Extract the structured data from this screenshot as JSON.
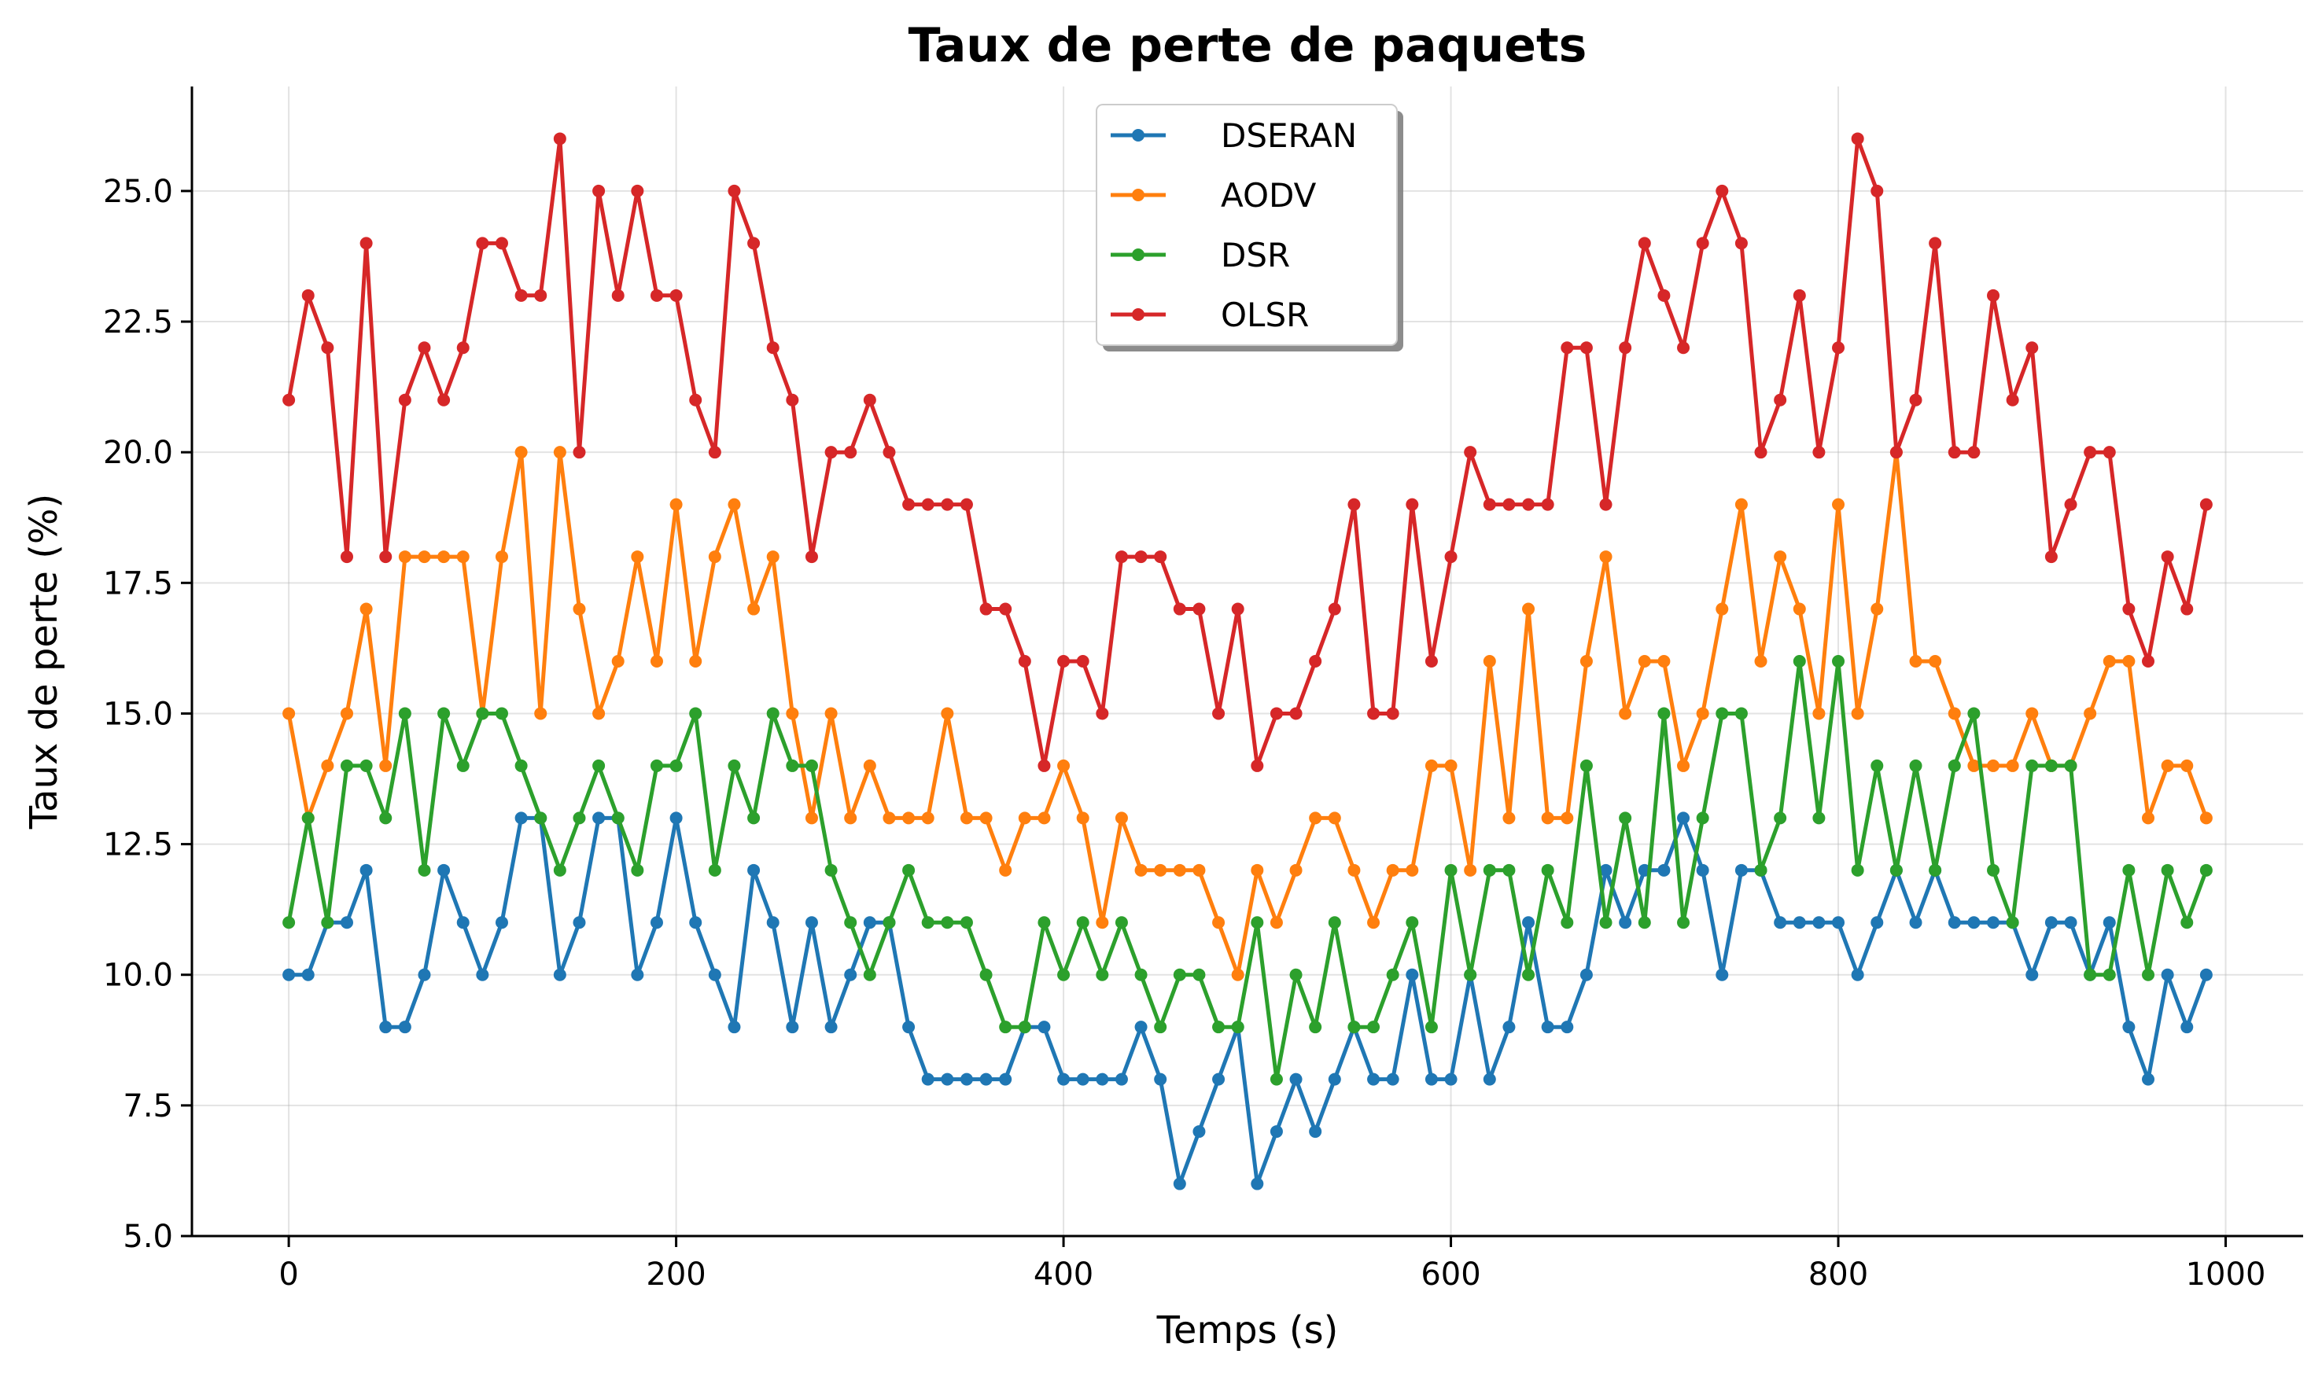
{
  "chart_data": {
    "type": "line",
    "title": "Taux de perte de paquets",
    "xlabel": "Temps (s)",
    "ylabel": "Taux de perte (%)",
    "xlim": [
      -50,
      1040
    ],
    "ylim": [
      5.0,
      27.0
    ],
    "xticks": [
      0,
      200,
      400,
      600,
      800,
      1000
    ],
    "xtick_labels": [
      "0",
      "200",
      "400",
      "600",
      "800",
      "1000"
    ],
    "yticks": [
      5.0,
      7.5,
      10.0,
      12.5,
      15.0,
      17.5,
      20.0,
      22.5,
      25.0
    ],
    "ytick_labels": [
      "5.0",
      "7.5",
      "10.0",
      "12.5",
      "15.0",
      "17.5",
      "20.0",
      "22.5",
      "25.0"
    ],
    "grid": true,
    "legend_position": "top-center",
    "x": [
      0,
      10,
      20,
      30,
      40,
      50,
      60,
      70,
      80,
      90,
      100,
      110,
      120,
      130,
      140,
      150,
      160,
      170,
      180,
      190,
      200,
      210,
      220,
      230,
      240,
      250,
      260,
      270,
      280,
      290,
      300,
      310,
      320,
      330,
      340,
      350,
      360,
      370,
      380,
      390,
      400,
      410,
      420,
      430,
      440,
      450,
      460,
      470,
      480,
      490,
      500,
      510,
      520,
      530,
      540,
      550,
      560,
      570,
      580,
      590,
      600,
      610,
      620,
      630,
      640,
      650,
      660,
      670,
      680,
      690,
      700,
      710,
      720,
      730,
      740,
      750,
      760,
      770,
      780,
      790,
      800,
      810,
      820,
      830,
      840,
      850,
      860,
      870,
      880,
      890,
      900,
      910,
      920,
      930,
      940,
      950,
      960,
      970,
      980,
      990
    ],
    "series": [
      {
        "name": "DSERAN",
        "color": "#1f77b4",
        "values": [
          10,
          10,
          11,
          11,
          12,
          9,
          9,
          10,
          12,
          11,
          10,
          11,
          13,
          13,
          10,
          11,
          13,
          13,
          10,
          11,
          13,
          11,
          10,
          9,
          12,
          11,
          9,
          11,
          9,
          10,
          11,
          11,
          9,
          8,
          8,
          8,
          8,
          8,
          9,
          9,
          8,
          8,
          8,
          8,
          9,
          8,
          6,
          7,
          8,
          9,
          6,
          7,
          8,
          7,
          8,
          9,
          8,
          8,
          10,
          8,
          8,
          10,
          8,
          9,
          11,
          9,
          9,
          10,
          12,
          11,
          12,
          12,
          13,
          12,
          10,
          12,
          12,
          11,
          11,
          11,
          11,
          10,
          11,
          12,
          11,
          12,
          11,
          11,
          11,
          11,
          10,
          11,
          11,
          10,
          11,
          9,
          8,
          10,
          9,
          10
        ]
      },
      {
        "name": "AODV",
        "color": "#ff7f0e",
        "values": [
          15,
          13,
          14,
          15,
          17,
          14,
          18,
          18,
          18,
          18,
          15,
          18,
          20,
          15,
          20,
          17,
          15,
          16,
          18,
          16,
          19,
          16,
          18,
          19,
          17,
          18,
          15,
          13,
          15,
          13,
          14,
          13,
          13,
          13,
          15,
          13,
          13,
          12,
          13,
          13,
          14,
          13,
          11,
          13,
          12,
          12,
          12,
          12,
          11,
          10,
          12,
          11,
          12,
          13,
          13,
          12,
          11,
          12,
          12,
          14,
          14,
          12,
          16,
          13,
          17,
          13,
          13,
          16,
          18,
          15,
          16,
          16,
          14,
          15,
          17,
          19,
          16,
          18,
          17,
          15,
          19,
          15,
          17,
          20,
          16,
          16,
          15,
          14,
          14,
          14,
          15,
          14,
          14,
          15,
          16,
          16,
          13,
          14,
          14,
          13
        ]
      },
      {
        "name": "DSR",
        "color": "#2ca02c",
        "values": [
          11,
          13,
          11,
          14,
          14,
          13,
          15,
          12,
          15,
          14,
          15,
          15,
          14,
          13,
          12,
          13,
          14,
          13,
          12,
          14,
          14,
          15,
          12,
          14,
          13,
          15,
          14,
          14,
          12,
          11,
          10,
          11,
          12,
          11,
          11,
          11,
          10,
          9,
          9,
          11,
          10,
          11,
          10,
          11,
          10,
          9,
          10,
          10,
          9,
          9,
          11,
          8,
          10,
          9,
          11,
          9,
          9,
          10,
          11,
          9,
          12,
          10,
          12,
          12,
          10,
          12,
          11,
          14,
          11,
          13,
          11,
          15,
          11,
          13,
          15,
          15,
          12,
          13,
          16,
          13,
          16,
          12,
          14,
          12,
          14,
          12,
          14,
          15,
          12,
          11,
          14,
          14,
          14,
          10,
          10,
          12,
          10,
          12,
          11,
          12
        ]
      },
      {
        "name": "OLSR",
        "color": "#d62728",
        "values": [
          21,
          23,
          22,
          18,
          24,
          18,
          21,
          22,
          21,
          22,
          24,
          24,
          23,
          23,
          26,
          20,
          25,
          23,
          25,
          23,
          23,
          21,
          20,
          25,
          24,
          22,
          21,
          18,
          20,
          20,
          21,
          20,
          19,
          19,
          19,
          19,
          17,
          17,
          16,
          14,
          16,
          16,
          15,
          18,
          18,
          18,
          17,
          17,
          15,
          17,
          14,
          15,
          15,
          16,
          17,
          19,
          15,
          15,
          19,
          16,
          18,
          20,
          19,
          19,
          19,
          19,
          22,
          22,
          19,
          22,
          24,
          23,
          22,
          24,
          25,
          24,
          20,
          21,
          23,
          20,
          22,
          26,
          25,
          20,
          21,
          24,
          20,
          20,
          23,
          21,
          22,
          18,
          19,
          20,
          20,
          17,
          16,
          18,
          17,
          19
        ]
      }
    ]
  }
}
